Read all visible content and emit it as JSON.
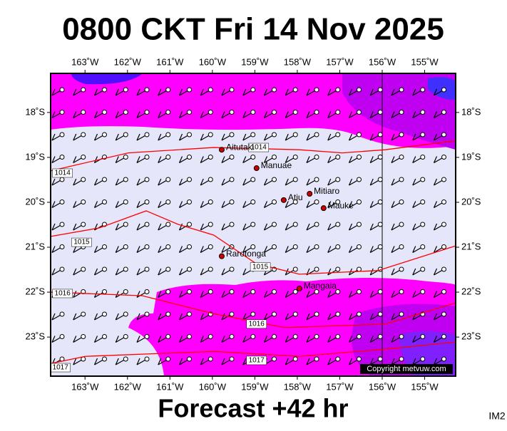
{
  "title": "0800 CKT Fri 14 Nov 2025",
  "subtitle": "Forecast +42 hr",
  "corner_label": "IM2",
  "copyright": "Copyright metvuw.com",
  "map": {
    "xlim": [
      -163.81,
      -154.27
    ],
    "ylim": [
      -23.87,
      -17.13
    ],
    "xticks": [
      {
        "value": -163,
        "label": "163˚W"
      },
      {
        "value": -162,
        "label": "162˚W"
      },
      {
        "value": -161,
        "label": "161˚W"
      },
      {
        "value": -160,
        "label": "160˚W"
      },
      {
        "value": -159,
        "label": "159˚W"
      },
      {
        "value": -158,
        "label": "158˚W"
      },
      {
        "value": -157,
        "label": "157˚W"
      },
      {
        "value": -156,
        "label": "156˚W"
      },
      {
        "value": -155,
        "label": "155˚W"
      }
    ],
    "yticks": [
      {
        "value": -18,
        "label": "18˚S"
      },
      {
        "value": -19,
        "label": "19˚S"
      },
      {
        "value": -20,
        "label": "20˚S"
      },
      {
        "value": -21,
        "label": "21˚S"
      },
      {
        "value": -22,
        "label": "22˚S"
      },
      {
        "value": -23,
        "label": "23˚S"
      }
    ],
    "islands": [
      {
        "name": "Aitutaki",
        "lon": -159.78,
        "lat": -18.83
      },
      {
        "name": "Manuae",
        "lon": -158.96,
        "lat": -19.24
      },
      {
        "name": "Mitiaro",
        "lon": -157.71,
        "lat": -19.81
      },
      {
        "name": "Atiu",
        "lon": -158.32,
        "lat": -19.95
      },
      {
        "name": "Mauke",
        "lon": -157.38,
        "lat": -20.13
      },
      {
        "name": "Rarotonga",
        "lon": -159.78,
        "lat": -21.2
      },
      {
        "name": "Mangaia",
        "lon": -157.95,
        "lat": -21.92
      }
    ],
    "isobars": [
      {
        "label": "1014",
        "color": "#ff0000",
        "lon": [
          -163.81,
          -161.98,
          -159.97,
          -157.95,
          -156.94,
          -155.93,
          -154.27
        ],
        "lat": [
          -19.3,
          -18.9,
          -18.78,
          -18.83,
          -18.9,
          -18.83,
          -18.63
        ],
        "label_lon": [
          -163.53,
          -158.91
        ],
        "label_lat": [
          -19.35,
          -18.78
        ]
      },
      {
        "label": "1015",
        "color": "#ff0000",
        "lon": [
          -163.81,
          -162.66,
          -161.56,
          -160.81,
          -159.97,
          -158.96,
          -157.95,
          -156.1,
          -154.27
        ],
        "lat": [
          -20.76,
          -20.57,
          -20.19,
          -20.49,
          -20.73,
          -21.37,
          -21.6,
          -21.52,
          -20.97
        ],
        "label_lon": [
          -163.08,
          -158.87
        ],
        "label_lat": [
          -20.89,
          -21.44
        ]
      },
      {
        "label": "1016",
        "color": "#ff0000",
        "lon": [
          -163.81,
          -161.65,
          -159.97,
          -158.29,
          -155.93,
          -154.27
        ],
        "lat": [
          -22.0,
          -22.08,
          -22.48,
          -22.79,
          -22.71,
          -22.24
        ],
        "label_lon": [
          -163.53,
          -158.96
        ],
        "label_lat": [
          -22.03,
          -22.71
        ]
      },
      {
        "label": "1017",
        "color": "#ff0000",
        "lon": [
          -163.81,
          -163.0,
          -159.97,
          -157.95,
          -155.93,
          -154.27
        ],
        "lat": [
          -23.59,
          -23.43,
          -23.32,
          -23.43,
          -23.27,
          -23.11
        ],
        "label_lon": [
          -163.58,
          -158.96
        ],
        "label_lat": [
          -23.68,
          -23.52
        ]
      }
    ]
  }
}
